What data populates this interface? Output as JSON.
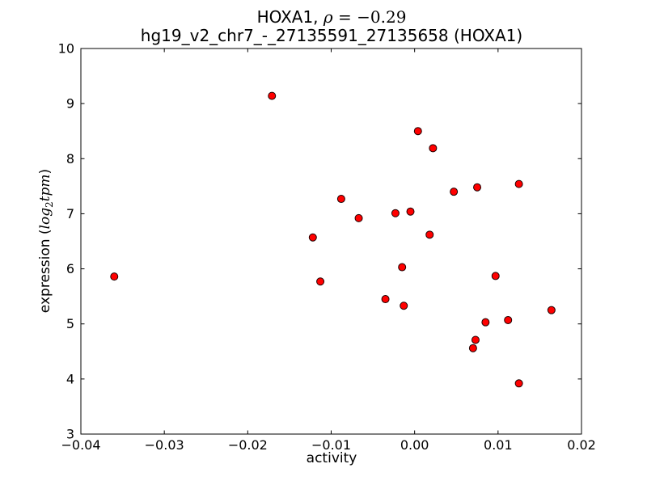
{
  "figure": {
    "title_line1": {
      "prefix": "HOXA1, ",
      "rho": "ρ",
      "rho_value": " = −0.29"
    },
    "title_line2": "hg19_v2_chr7_-_27135591_27135658 (HOXA1)",
    "xlabel": "activity",
    "ylabel": {
      "prefix": "expression (",
      "log": "log",
      "sub": "2",
      "var": "tpm",
      "suffix": ")"
    }
  },
  "chart_data": {
    "type": "scatter",
    "title": "HOXA1, ρ = −0.29",
    "subtitle": "hg19_v2_chr7_-_27135591_27135658 (HOXA1)",
    "xlabel": "activity",
    "ylabel": "expression (log2 tpm)",
    "correlation_rho": -0.29,
    "xlim": [
      -0.04,
      0.02
    ],
    "ylim": [
      3,
      10
    ],
    "grid": false,
    "legend": "none",
    "xticks": {
      "values": [
        -0.04,
        -0.03,
        -0.02,
        -0.01,
        0.0,
        0.01,
        0.02
      ],
      "labels": [
        "−0.04",
        "−0.03",
        "−0.02",
        "−0.01",
        "0.00",
        "0.01",
        "0.02"
      ]
    },
    "yticks": {
      "values": [
        3,
        4,
        5,
        6,
        7,
        8,
        9,
        10
      ],
      "labels": [
        "3",
        "4",
        "5",
        "6",
        "7",
        "8",
        "9",
        "10"
      ]
    },
    "marker": {
      "shape": "circle",
      "fill": "#ff0000",
      "edge": "#1c0000",
      "radius": 4.5
    },
    "spine_color": "#000000",
    "points": [
      [
        -0.036,
        5.86
      ],
      [
        -0.0171,
        9.14
      ],
      [
        -0.0122,
        6.57
      ],
      [
        -0.0113,
        5.77
      ],
      [
        -0.0088,
        7.27
      ],
      [
        -0.0067,
        6.92
      ],
      [
        -0.0035,
        5.45
      ],
      [
        -0.0023,
        7.01
      ],
      [
        -0.0015,
        6.03
      ],
      [
        -0.0013,
        5.33
      ],
      [
        -0.0005,
        7.04
      ],
      [
        0.0004,
        8.5
      ],
      [
        0.0022,
        8.19
      ],
      [
        0.0018,
        6.62
      ],
      [
        0.0047,
        7.4
      ],
      [
        0.0075,
        7.48
      ],
      [
        0.0085,
        5.03
      ],
      [
        0.0112,
        5.07
      ],
      [
        0.0073,
        4.71
      ],
      [
        0.007,
        4.56
      ],
      [
        0.0097,
        5.87
      ],
      [
        0.0125,
        7.54
      ],
      [
        0.0125,
        3.92
      ],
      [
        0.0164,
        5.25
      ]
    ]
  }
}
